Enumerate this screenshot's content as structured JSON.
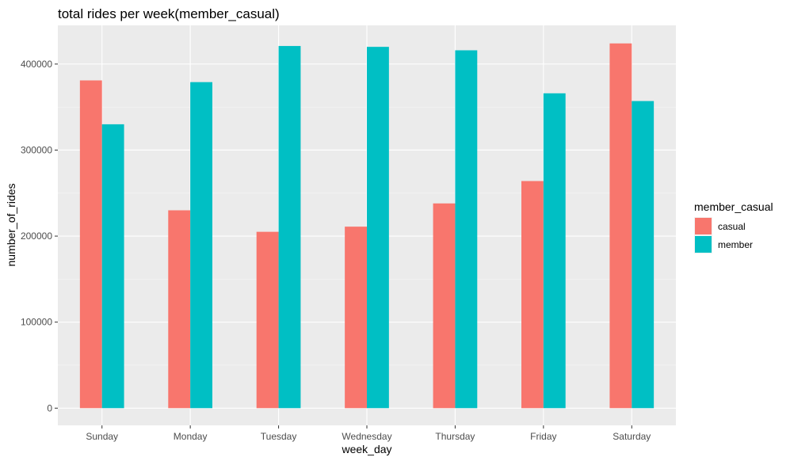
{
  "chart_data": {
    "type": "bar",
    "title": "total rides per week(member_casual)",
    "xlabel": "week_day",
    "ylabel": "number_of_rides",
    "categories": [
      "Sunday",
      "Monday",
      "Tuesday",
      "Wednesday",
      "Thursday",
      "Friday",
      "Saturday"
    ],
    "series": [
      {
        "name": "casual",
        "color": "#F8766D",
        "values": [
          381000,
          230000,
          205000,
          211000,
          238000,
          264000,
          424000
        ]
      },
      {
        "name": "member",
        "color": "#00BFC4",
        "values": [
          330000,
          379000,
          421000,
          420000,
          416000,
          366000,
          357000
        ]
      }
    ],
    "ylim": [
      -20000,
      445000
    ],
    "yticks": [
      0,
      100000,
      200000,
      300000,
      400000
    ],
    "ytick_labels": [
      "0",
      "100000",
      "200000",
      "300000",
      "400000"
    ],
    "grid": true,
    "panel_background": "#EBEBEB",
    "legend": {
      "title": "member_casual",
      "position": "right"
    }
  }
}
